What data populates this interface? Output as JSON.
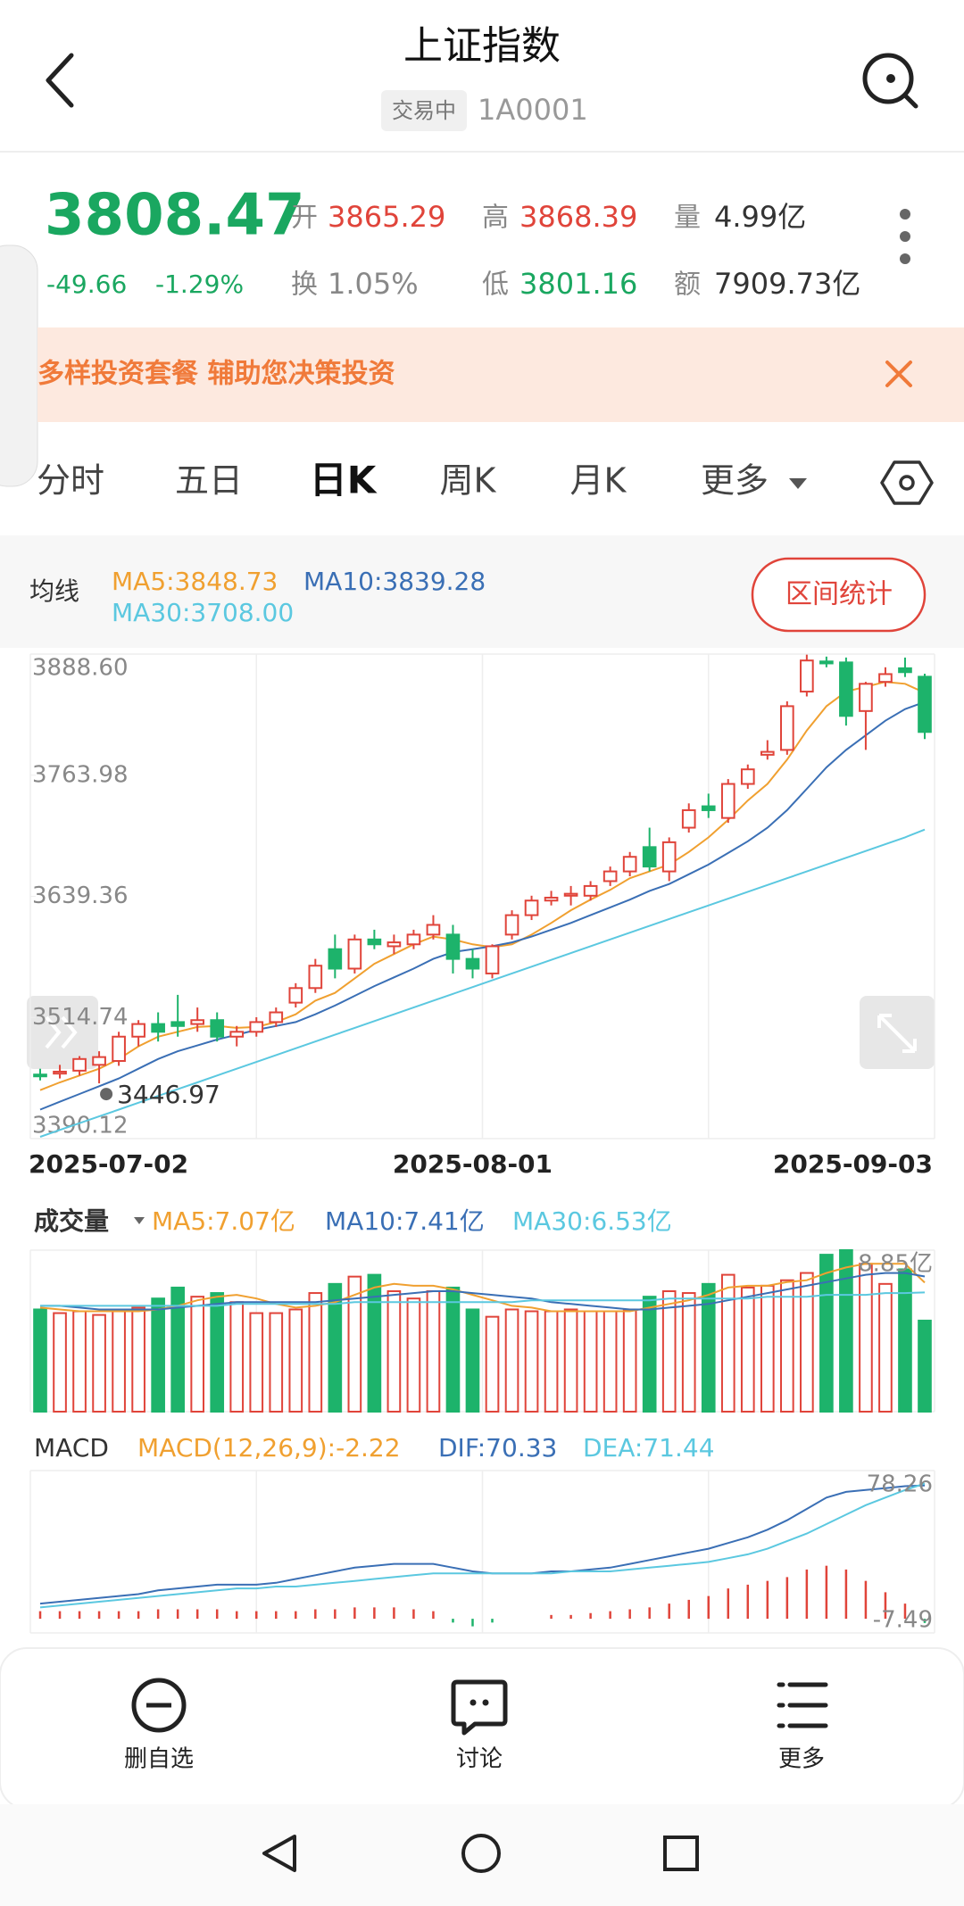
{
  "header": {
    "title": "上证指数",
    "status": "交易中",
    "code": "1A0001"
  },
  "quote": {
    "price": "3808.47",
    "change": "-49.66",
    "change_pct": "-1.29%",
    "fields": [
      {
        "label": "开",
        "value": "3865.29",
        "color": "#e0443a"
      },
      {
        "label": "高",
        "value": "3868.39",
        "color": "#e0443a"
      },
      {
        "label": "量",
        "value": "4.99亿",
        "color": "#333333"
      },
      {
        "label": "换",
        "value": "1.05%",
        "color": "#888888"
      },
      {
        "label": "低",
        "value": "3801.16",
        "color": "#1aa760"
      },
      {
        "label": "额",
        "value": "7909.73亿",
        "color": "#333333"
      }
    ]
  },
  "banner": "多样投资套餐 辅助您决策投资",
  "tabs": [
    "分时",
    "五日",
    "日K",
    "周K",
    "月K",
    "更多"
  ],
  "range_button": "区间统计",
  "chart_data": [
    {
      "type": "candlestick",
      "legend_title": "均线",
      "up_color": "#e0443a",
      "down_color": "#1db36b",
      "categories": [
        "2025-07-02",
        null,
        null,
        null,
        null,
        null,
        null,
        null,
        null,
        null,
        null,
        null,
        null,
        null,
        null,
        null,
        null,
        null,
        null,
        null,
        null,
        null,
        "2025-08-01",
        null,
        null,
        null,
        null,
        null,
        null,
        null,
        null,
        null,
        null,
        null,
        null,
        null,
        null,
        null,
        null,
        null,
        null,
        null,
        null,
        null,
        null,
        "2025-09-03"
      ],
      "ohlc": [
        [
          3456,
          3462,
          3450,
          3455
        ],
        [
          3457,
          3466,
          3452,
          3459
        ],
        [
          3460,
          3475,
          3455,
          3472
        ],
        [
          3466,
          3480,
          3446.97,
          3474
        ],
        [
          3470,
          3500,
          3465,
          3495
        ],
        [
          3495,
          3512,
          3485,
          3508
        ],
        [
          3508,
          3520,
          3490,
          3500
        ],
        [
          3510,
          3538,
          3495,
          3506
        ],
        [
          3508,
          3525,
          3500,
          3512
        ],
        [
          3512,
          3520,
          3490,
          3495
        ],
        [
          3495,
          3506,
          3485,
          3500
        ],
        [
          3500,
          3515,
          3495,
          3510
        ],
        [
          3510,
          3525,
          3505,
          3520
        ],
        [
          3530,
          3550,
          3525,
          3545
        ],
        [
          3545,
          3575,
          3540,
          3568
        ],
        [
          3585,
          3600,
          3555,
          3565
        ],
        [
          3565,
          3600,
          3560,
          3595
        ],
        [
          3595,
          3605,
          3585,
          3590
        ],
        [
          3588,
          3600,
          3580,
          3592
        ],
        [
          3590,
          3605,
          3585,
          3600
        ],
        [
          3600,
          3620,
          3595,
          3610
        ],
        [
          3600,
          3610,
          3560,
          3575
        ],
        [
          3575,
          3585,
          3555,
          3565
        ],
        [
          3560,
          3590,
          3555,
          3588
        ],
        [
          3600,
          3625,
          3595,
          3620
        ],
        [
          3620,
          3640,
          3615,
          3635
        ],
        [
          3635,
          3645,
          3630,
          3638
        ],
        [
          3640,
          3650,
          3630,
          3642
        ],
        [
          3640,
          3655,
          3635,
          3650
        ],
        [
          3655,
          3670,
          3650,
          3665
        ],
        [
          3665,
          3685,
          3660,
          3680
        ],
        [
          3690,
          3710,
          3665,
          3670
        ],
        [
          3665,
          3700,
          3655,
          3695
        ],
        [
          3710,
          3735,
          3705,
          3728
        ],
        [
          3732,
          3745,
          3720,
          3728
        ],
        [
          3720,
          3760,
          3715,
          3755
        ],
        [
          3755,
          3775,
          3750,
          3770
        ],
        [
          3785,
          3800,
          3780,
          3788
        ],
        [
          3790,
          3840,
          3785,
          3835
        ],
        [
          3850,
          3888,
          3845,
          3882
        ],
        [
          3881,
          3886,
          3875,
          3879
        ],
        [
          3880,
          3885,
          3815,
          3825
        ],
        [
          3830,
          3860,
          3790,
          3858
        ],
        [
          3860,
          3875,
          3855,
          3868
        ],
        [
          3874,
          3885,
          3865,
          3870
        ],
        [
          3865.29,
          3868.39,
          3801.16,
          3808.47
        ]
      ],
      "annotation": "3446.97",
      "series": [
        {
          "name": "MA5:3848.73",
          "color": "#f0a030",
          "values": [
            3440,
            3448,
            3455,
            3462,
            3472,
            3485,
            3495,
            3500,
            3505,
            3506,
            3504,
            3505,
            3510,
            3518,
            3532,
            3540,
            3555,
            3570,
            3580,
            3590,
            3598,
            3595,
            3590,
            3587,
            3590,
            3600,
            3612,
            3625,
            3636,
            3646,
            3658,
            3665,
            3672,
            3685,
            3700,
            3718,
            3738,
            3755,
            3780,
            3810,
            3835,
            3850,
            3855,
            3860,
            3858,
            3848.73
          ]
        },
        {
          "name": "MA10:3839.28",
          "color": "#3a6fb5",
          "values": [
            3420,
            3428,
            3436,
            3444,
            3452,
            3462,
            3472,
            3480,
            3486,
            3492,
            3497,
            3502,
            3506,
            3510,
            3518,
            3527,
            3537,
            3547,
            3556,
            3565,
            3575,
            3582,
            3585,
            3588,
            3592,
            3598,
            3605,
            3612,
            3620,
            3628,
            3636,
            3645,
            3652,
            3662,
            3672,
            3684,
            3696,
            3710,
            3728,
            3750,
            3772,
            3790,
            3805,
            3820,
            3832,
            3839.28
          ]
        },
        {
          "name": "MA30:3708.00",
          "color": "#5bc8e0",
          "values": [
            3392,
            3399,
            3406,
            3413,
            3420,
            3427,
            3434,
            3441,
            3448,
            3455,
            3462,
            3469,
            3476,
            3483,
            3490,
            3497,
            3504,
            3511,
            3518,
            3525,
            3532,
            3539,
            3546,
            3553,
            3560,
            3567,
            3574,
            3581,
            3588,
            3595,
            3602,
            3609,
            3616,
            3623,
            3630,
            3637,
            3644,
            3651,
            3658,
            3665,
            3672,
            3679,
            3686,
            3693,
            3700,
            3708
          ]
        }
      ],
      "ylim": [
        3390.12,
        3888.6
      ],
      "yticks": [
        {
          "value": 3888.6,
          "label": "3888.60"
        },
        3763.98,
        3639.36,
        3514.74,
        3390.12
      ]
    },
    {
      "type": "bar",
      "title": "成交量",
      "values": [
        5.6,
        5.4,
        5.5,
        5.3,
        5.5,
        5.7,
        6.2,
        6.8,
        6.3,
        6.5,
        6.0,
        5.4,
        5.4,
        5.6,
        6.5,
        7.0,
        7.4,
        7.5,
        6.6,
        6.2,
        6.6,
        6.8,
        5.6,
        5.2,
        5.6,
        5.5,
        5.5,
        5.6,
        5.5,
        5.5,
        5.6,
        6.3,
        6.6,
        6.5,
        7.0,
        7.5,
        6.8,
        6.9,
        7.2,
        7.6,
        8.6,
        8.85,
        8.1,
        7.0,
        7.8,
        4.99
      ],
      "series": [
        {
          "name": "MA5:7.07亿",
          "color": "#f0a030",
          "values": [
            5.7,
            5.6,
            5.5,
            5.5,
            5.5,
            5.5,
            5.6,
            5.8,
            6.1,
            6.3,
            6.4,
            6.2,
            5.9,
            5.7,
            5.8,
            6.0,
            6.4,
            6.8,
            7.0,
            6.9,
            6.9,
            6.7,
            6.4,
            6.1,
            5.8,
            5.7,
            5.5,
            5.5,
            5.5,
            5.5,
            5.5,
            5.7,
            5.9,
            6.1,
            6.4,
            6.8,
            6.9,
            6.9,
            7.1,
            7.2,
            7.6,
            7.9,
            8.1,
            8.1,
            8.1,
            7.07
          ]
        },
        {
          "name": "MA10:7.41亿",
          "color": "#3a6fb5",
          "values": [
            5.8,
            5.8,
            5.7,
            5.6,
            5.6,
            5.6,
            5.6,
            5.7,
            5.8,
            5.9,
            6.0,
            6.0,
            6.0,
            6.0,
            6.0,
            6.1,
            6.2,
            6.3,
            6.4,
            6.5,
            6.6,
            6.6,
            6.5,
            6.4,
            6.3,
            6.2,
            6.0,
            5.9,
            5.8,
            5.7,
            5.6,
            5.6,
            5.7,
            5.8,
            5.9,
            6.1,
            6.3,
            6.5,
            6.7,
            6.9,
            7.1,
            7.3,
            7.5,
            7.6,
            7.6,
            7.41
          ]
        },
        {
          "name": "MA30:6.53亿",
          "color": "#5bc8e0",
          "values": [
            5.8,
            5.8,
            5.8,
            5.8,
            5.8,
            5.8,
            5.8,
            5.8,
            5.8,
            5.8,
            5.9,
            5.9,
            5.9,
            5.9,
            5.9,
            5.9,
            6.0,
            6.0,
            6.0,
            6.0,
            6.0,
            6.0,
            6.0,
            6.0,
            6.0,
            6.1,
            6.1,
            6.1,
            6.1,
            6.1,
            6.1,
            6.1,
            6.2,
            6.2,
            6.2,
            6.2,
            6.2,
            6.3,
            6.3,
            6.3,
            6.4,
            6.4,
            6.4,
            6.5,
            6.5,
            6.53
          ]
        }
      ],
      "ylim": [
        0,
        8.85
      ],
      "yticks": [
        {
          "value": 8.85,
          "label": "8.85亿"
        }
      ]
    },
    {
      "type": "macd",
      "title": "MACD",
      "up_color": "#e0443a",
      "down_color": "#1db36b",
      "series": [
        {
          "name": "MACD(12,26,9):-2.22",
          "color": "#f0a030",
          "kind": "bar",
          "values": [
            4,
            4,
            4,
            4,
            4,
            4,
            5,
            5,
            5,
            5,
            4,
            4,
            4,
            4,
            5,
            5,
            6,
            6,
            6,
            5,
            4,
            -2,
            -4,
            -2,
            0,
            0,
            2,
            2,
            3,
            4,
            5,
            6,
            8,
            10,
            12,
            16,
            18,
            20,
            22,
            26,
            28,
            26,
            20,
            14,
            8,
            -2.22
          ]
        },
        {
          "name": "DIF:70.33",
          "color": "#3a6fb5",
          "values": [
            8,
            9,
            10,
            11,
            12,
            13,
            15,
            16,
            17,
            18,
            18,
            18,
            19,
            21,
            23,
            25,
            27,
            28,
            29,
            29,
            29,
            27,
            25,
            24,
            24,
            24,
            25,
            25,
            26,
            27,
            29,
            31,
            33,
            35,
            37,
            40,
            43,
            47,
            52,
            58,
            64,
            67,
            68,
            69,
            70,
            70.33
          ]
        },
        {
          "name": "DEA:71.44",
          "color": "#5bc8e0",
          "values": [
            6,
            7,
            8,
            9,
            10,
            11,
            12,
            13,
            14,
            15,
            16,
            16,
            17,
            17,
            18,
            19,
            20,
            21,
            22,
            23,
            24,
            24,
            24,
            24,
            24,
            24,
            24,
            25,
            25,
            25,
            26,
            27,
            28,
            29,
            30,
            32,
            34,
            37,
            41,
            45,
            50,
            55,
            60,
            64,
            68,
            71.44
          ]
        }
      ],
      "ylim": [
        -7.49,
        78.26
      ],
      "yticks": [
        78.26,
        -7.49
      ]
    }
  ],
  "toolbar": [
    "删自选",
    "讨论",
    "更多"
  ]
}
